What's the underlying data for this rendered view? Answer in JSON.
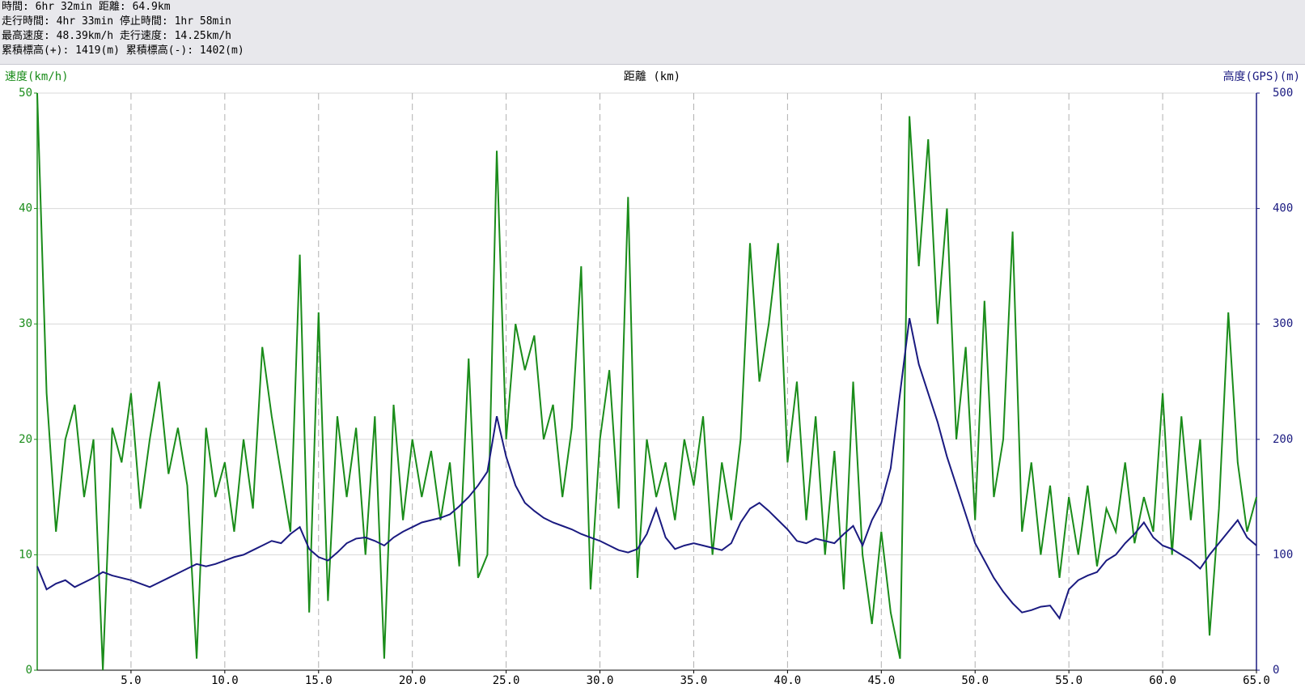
{
  "header": {
    "lines": [
      "時間: 6hr 32min 距離: 64.9km",
      "走行時間: 4hr 33min 停止時間: 1hr 58min",
      "最高速度: 48.39km/h 走行速度: 14.25km/h",
      "累積標高(+): 1419(m) 累積標高(-): 1402(m)"
    ]
  },
  "chart_data": {
    "type": "line",
    "x_label": "距離 (km)",
    "y_label": "速度(km/h)",
    "y2_label": "高度(GPS)(m)",
    "xlim": [
      0,
      65
    ],
    "ylim": [
      0,
      50
    ],
    "y2lim": [
      0,
      500
    ],
    "xticks": [
      {
        "value": 5,
        "label": "5.0"
      },
      {
        "value": 10,
        "label": "10.0"
      },
      {
        "value": 15,
        "label": "15.0"
      },
      {
        "value": 20,
        "label": "20.0"
      },
      {
        "value": 25,
        "label": "25.0"
      },
      {
        "value": 30,
        "label": "30.0"
      },
      {
        "value": 35,
        "label": "35.0"
      },
      {
        "value": 40,
        "label": "40.0"
      },
      {
        "value": 45,
        "label": "45.0"
      },
      {
        "value": 50,
        "label": "50.0"
      },
      {
        "value": 55,
        "label": "55.0"
      },
      {
        "value": 60,
        "label": "60.0"
      },
      {
        "value": 65,
        "label": "65.0"
      }
    ],
    "yticks": [
      0,
      10,
      20,
      30,
      40,
      50
    ],
    "y2ticks": [
      0,
      100,
      200,
      300,
      400,
      500
    ],
    "grid": true,
    "x": [
      0,
      0.5,
      1,
      1.5,
      2,
      2.5,
      3,
      3.5,
      4,
      4.5,
      5,
      5.5,
      6,
      6.5,
      7,
      7.5,
      8,
      8.5,
      9,
      9.5,
      10,
      10.5,
      11,
      11.5,
      12,
      12.5,
      13,
      13.5,
      14,
      14.5,
      15,
      15.5,
      16,
      16.5,
      17,
      17.5,
      18,
      18.5,
      19,
      19.5,
      20,
      20.5,
      21,
      21.5,
      22,
      22.5,
      23,
      23.5,
      24,
      24.5,
      25,
      25.5,
      26,
      26.5,
      27,
      27.5,
      28,
      28.5,
      29,
      29.5,
      30,
      30.5,
      31,
      31.5,
      32,
      32.5,
      33,
      33.5,
      34,
      34.5,
      35,
      35.5,
      36,
      36.5,
      37,
      37.5,
      38,
      38.5,
      39,
      39.5,
      40,
      40.5,
      41,
      41.5,
      42,
      42.5,
      43,
      43.5,
      44,
      44.5,
      45,
      45.5,
      46,
      46.5,
      47,
      47.5,
      48,
      48.5,
      49,
      49.5,
      50,
      50.5,
      51,
      51.5,
      52,
      52.5,
      53,
      53.5,
      54,
      54.5,
      55,
      55.5,
      56,
      56.5,
      57,
      57.5,
      58,
      58.5,
      59,
      59.5,
      60,
      60.5,
      61,
      61.5,
      62,
      62.5,
      63,
      63.5,
      64,
      64.5,
      65
    ],
    "series": [
      {
        "color": "#1a8c1a",
        "axis": "y",
        "values": [
          50,
          24,
          12,
          20,
          23,
          15,
          20,
          0,
          21,
          18,
          24,
          14,
          20,
          25,
          17,
          21,
          16,
          1,
          21,
          15,
          18,
          12,
          20,
          14,
          28,
          22,
          17,
          12,
          36,
          5,
          31,
          6,
          22,
          15,
          21,
          10,
          22,
          1,
          23,
          13,
          20,
          15,
          19,
          13,
          18,
          9,
          27,
          8,
          10,
          45,
          20,
          30,
          26,
          29,
          20,
          23,
          15,
          21,
          35,
          7,
          20,
          26,
          14,
          41,
          8,
          20,
          15,
          18,
          13,
          20,
          16,
          22,
          10,
          18,
          13,
          20,
          37,
          25,
          30,
          37,
          18,
          25,
          13,
          22,
          10,
          19,
          7,
          25,
          10,
          4,
          12,
          5,
          1,
          48,
          35,
          46,
          30,
          40,
          20,
          28,
          13,
          32,
          15,
          20,
          38,
          12,
          18,
          10,
          16,
          8,
          15,
          10,
          16,
          9,
          14,
          12,
          18,
          11,
          15,
          12,
          24,
          10,
          22,
          13,
          20,
          3,
          14,
          31,
          18,
          12,
          15
        ]
      },
      {
        "color": "#1a1a80",
        "axis": "y2",
        "values": [
          90,
          70,
          75,
          78,
          72,
          76,
          80,
          85,
          82,
          80,
          78,
          75,
          72,
          76,
          80,
          84,
          88,
          92,
          90,
          92,
          95,
          98,
          100,
          104,
          108,
          112,
          110,
          118,
          124,
          105,
          98,
          95,
          102,
          110,
          114,
          115,
          112,
          108,
          115,
          120,
          124,
          128,
          130,
          132,
          135,
          142,
          150,
          160,
          172,
          220,
          185,
          160,
          145,
          138,
          132,
          128,
          125,
          122,
          118,
          115,
          112,
          108,
          104,
          102,
          105,
          118,
          140,
          115,
          105,
          108,
          110,
          108,
          106,
          104,
          110,
          128,
          140,
          145,
          138,
          130,
          122,
          112,
          110,
          114,
          112,
          110,
          118,
          125,
          108,
          130,
          145,
          175,
          240,
          305,
          265,
          240,
          215,
          185,
          160,
          135,
          110,
          95,
          80,
          68,
          58,
          50,
          52,
          55,
          56,
          45,
          70,
          78,
          82,
          85,
          95,
          100,
          110,
          118,
          128,
          115,
          108,
          105,
          100,
          95,
          88,
          100,
          110,
          120,
          130,
          115,
          108
        ]
      }
    ]
  }
}
